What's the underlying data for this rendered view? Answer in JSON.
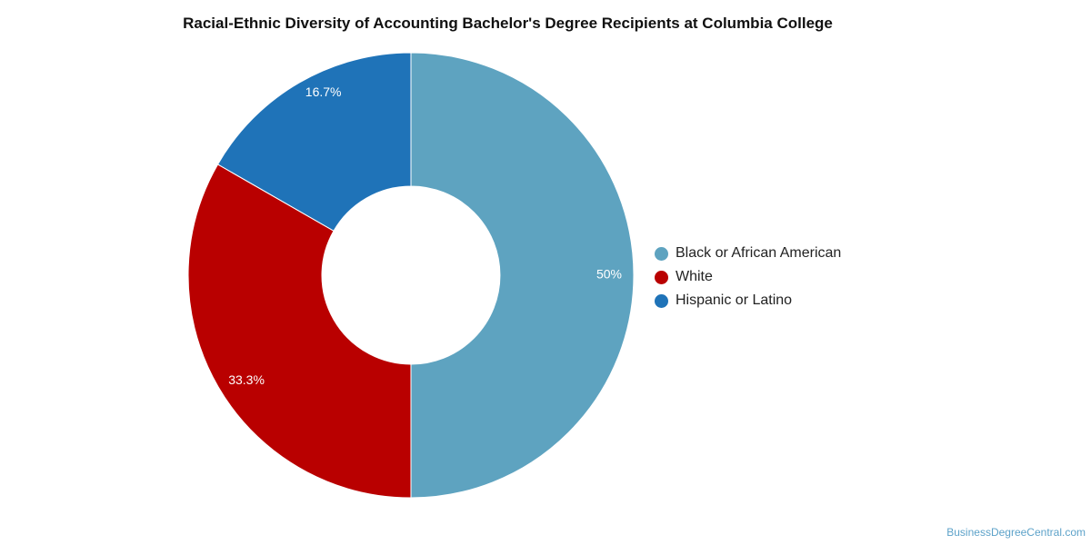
{
  "chart_data": {
    "type": "pie",
    "title": "Racial-Ethnic Diversity of Accounting Bachelor's Degree Recipients at Columbia College",
    "donut": true,
    "categories": [
      "Black or African American",
      "White",
      "Hispanic or Latino"
    ],
    "values": [
      50,
      33.3,
      16.7
    ],
    "value_labels": [
      "50%",
      "33.3%",
      "16.7%"
    ],
    "colors": [
      "#5ea3c0",
      "#b90000",
      "#1f73b8"
    ],
    "legend_position": "right"
  },
  "watermark": "BusinessDegreeCentral.com"
}
